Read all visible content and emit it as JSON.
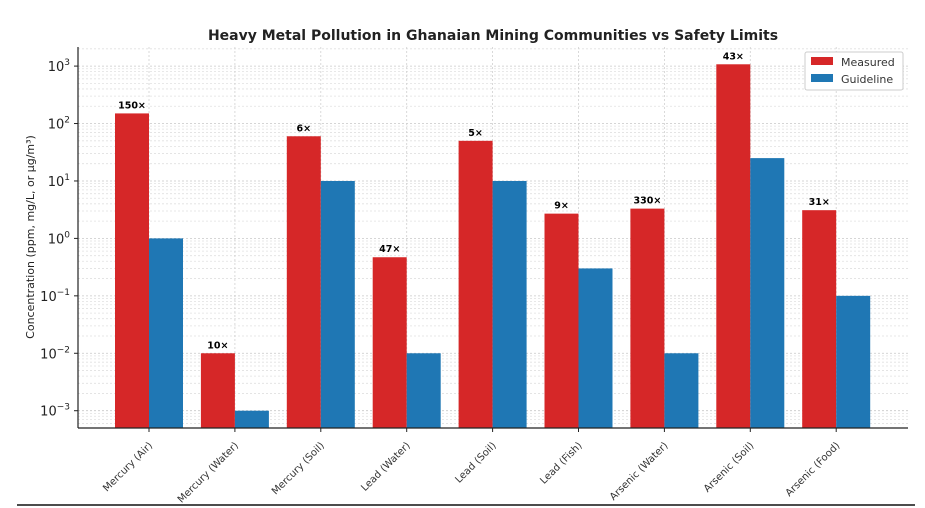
{
  "chart_data": {
    "type": "bar",
    "title": "Heavy Metal Pollution in Ghanaian Mining Communities vs Safety Limits",
    "xlabel": "",
    "ylabel": "Concentration (ppm, mg/L, or µg/m³)",
    "yscale": "log",
    "ylim": [
      0.0005,
      2150
    ],
    "yticks": [
      0.001,
      0.01,
      0.1,
      1,
      10,
      100,
      1000
    ],
    "ytick_labels": [
      [
        "10",
        "−3"
      ],
      [
        "10",
        "−2"
      ],
      [
        "10",
        "−1"
      ],
      [
        "10",
        "0"
      ],
      [
        "10",
        "1"
      ],
      [
        "10",
        "2"
      ],
      [
        "10",
        "3"
      ]
    ],
    "grid": true,
    "legend": "top-right",
    "categories": [
      "Mercury (Air)",
      "Mercury (Water)",
      "Mercury (Soil)",
      "Lead (Water)",
      "Lead (Soil)",
      "Lead (Fish)",
      "Arsenic (Water)",
      "Arsenic (Soil)",
      "Arsenic (Food)"
    ],
    "series": [
      {
        "name": "Measured",
        "color": "#d62728",
        "values": [
          150,
          0.01,
          60,
          0.47,
          50,
          2.7,
          3.3,
          1075,
          3.1
        ]
      },
      {
        "name": "Guideline",
        "color": "#1f77b4",
        "values": [
          1,
          0.001,
          10,
          0.01,
          10,
          0.3,
          0.01,
          25,
          0.1
        ]
      }
    ],
    "data_labels": [
      "150×",
      "10×",
      "6×",
      "47×",
      "5×",
      "9×",
      "330×",
      "43×",
      "31×"
    ]
  }
}
